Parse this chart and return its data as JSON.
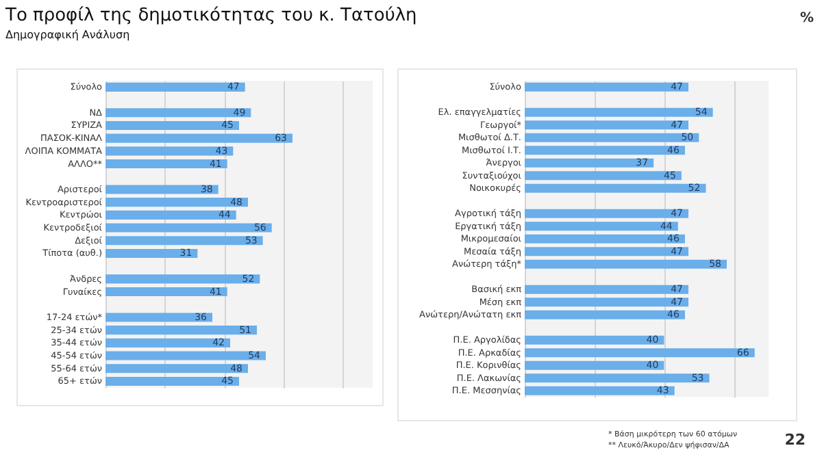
{
  "chart_data": [
    {
      "type": "bar",
      "orientation": "horizontal",
      "title": "Το προφίλ της δημοτικότητας του κ. Τατούλη",
      "subtitle": "Δημογραφική Ανάλυση",
      "categories": [
        "Σύνολο",
        null,
        "ΝΔ",
        "ΣΥΡΙΖΑ",
        "ΠΑΣΟΚ-ΚΙΝΑΛ",
        "ΛΟΙΠΑ ΚΟΜΜΑΤΑ",
        "ΑΛΛΟ**",
        null,
        "Αριστεροί",
        "Κεντροαριστεροί",
        "Κεντρώοι",
        "Κεντροδεξιοί",
        "Δεξιοί",
        "Τίποτα (αυθ.)",
        null,
        "Άνδρες",
        "Γυναίκες",
        null,
        "17-24 ετών*",
        "25-34 ετών",
        "35-44 ετών",
        "45-54 ετών",
        "55-64 ετών",
        "65+ ετών"
      ],
      "values": [
        47,
        null,
        49,
        45,
        63,
        43,
        41,
        null,
        38,
        48,
        44,
        56,
        53,
        31,
        null,
        52,
        41,
        null,
        36,
        51,
        42,
        54,
        48,
        45
      ],
      "color": "#6aaeea",
      "data_labels": true,
      "xlim": [
        0,
        90
      ],
      "xticks": [
        0,
        20,
        40,
        60,
        80
      ],
      "grid": "x",
      "tick_labels": "y"
    },
    {
      "type": "bar",
      "orientation": "horizontal",
      "annotations": [
        "%",
        "* Βάση μικρότερη των 60 ατόμων",
        "** Λευκό/Άκυρο/Δεν ψήφισαν/ΔΑ",
        "22"
      ],
      "categories": [
        "Σύνολο",
        null,
        "Ελ. επαγγελματίες",
        "Γεωργοί*",
        "Μισθωτοί Δ.Τ.",
        "Μισθωτοί Ι.Τ.",
        "Άνεργοι",
        "Συνταξιούχοι",
        "Νοικοκυρές",
        null,
        "Αγροτική τάξη",
        "Εργατική τάξη",
        "Μικρομεσαίοι",
        "Μεσαία τάξη",
        "Ανώτερη τάξη*",
        null,
        "Βασική εκπ",
        "Μέση εκπ",
        "Ανώτερη/Ανώτατη εκπ",
        null,
        "Π.Ε. Αργολίδας",
        "Π.Ε. Αρκαδίας",
        "Π.Ε. Κορινθίας",
        "Π.Ε. Λακωνίας",
        "Π.Ε. Μεσσηνίας"
      ],
      "values": [
        47,
        null,
        54,
        47,
        50,
        46,
        37,
        45,
        52,
        null,
        47,
        44,
        46,
        47,
        58,
        null,
        47,
        47,
        46,
        null,
        40,
        66,
        40,
        53,
        43
      ],
      "color": "#6aaeea",
      "data_labels": true,
      "xlim": [
        0,
        70
      ],
      "xticks": [
        0,
        20,
        40,
        60
      ],
      "grid": "x",
      "tick_labels": "y"
    }
  ]
}
